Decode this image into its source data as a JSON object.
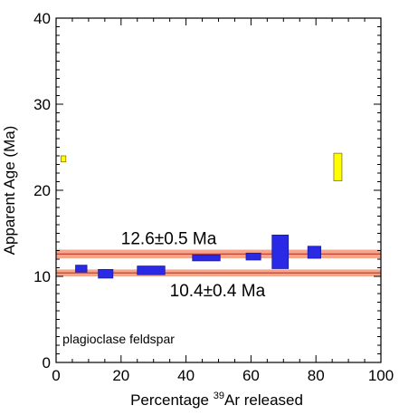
{
  "chart_data": {
    "type": "bar",
    "xlabel_pre": "Percentage ",
    "xlabel_sup": "39",
    "xlabel_post": "Ar released",
    "ylabel": "Apparent Age (Ma)",
    "xlim": [
      0,
      100
    ],
    "ylim": [
      0,
      40
    ],
    "x_ticks": [
      "0",
      "20",
      "40",
      "60",
      "80",
      "100"
    ],
    "y_ticks": [
      "0",
      "10",
      "20",
      "30",
      "40"
    ],
    "grid": false,
    "steps": [
      {
        "x0": 1.5,
        "x1": 3.0,
        "y0": 23.3,
        "y1": 24.0,
        "color": "#ffff00"
      },
      {
        "x0": 6.0,
        "x1": 9.5,
        "y0": 10.5,
        "y1": 11.3,
        "color": "#2a2ae6"
      },
      {
        "x0": 13.0,
        "x1": 17.5,
        "y0": 9.8,
        "y1": 10.8,
        "color": "#2a2ae6"
      },
      {
        "x0": 25.0,
        "x1": 33.5,
        "y0": 10.2,
        "y1": 11.2,
        "color": "#2a2ae6"
      },
      {
        "x0": 42.0,
        "x1": 50.5,
        "y0": 11.8,
        "y1": 12.5,
        "color": "#2a2ae6"
      },
      {
        "x0": 58.5,
        "x1": 63.0,
        "y0": 11.9,
        "y1": 12.7,
        "color": "#2a2ae6"
      },
      {
        "x0": 66.5,
        "x1": 71.5,
        "y0": 10.9,
        "y1": 14.8,
        "color": "#2a2ae6"
      },
      {
        "x0": 77.5,
        "x1": 81.5,
        "y0": 12.1,
        "y1": 13.5,
        "color": "#2a2ae6"
      },
      {
        "x0": 85.5,
        "x1": 88.0,
        "y0": 21.1,
        "y1": 24.3,
        "color": "#ffff00"
      }
    ],
    "bands": [
      {
        "value": 12.6,
        "error": 0.5,
        "label": "12.6±0.5 Ma",
        "label_x": 20,
        "label_side": "above"
      },
      {
        "value": 10.4,
        "error": 0.4,
        "label": "10.4±0.4 Ma",
        "label_x": 35,
        "label_side": "below"
      }
    ],
    "band_color": "#f4a58a",
    "band_line_color": "#c0392b",
    "annotation": "plagioclase feldspar",
    "annotation_x": 2,
    "annotation_y": 2.2
  }
}
